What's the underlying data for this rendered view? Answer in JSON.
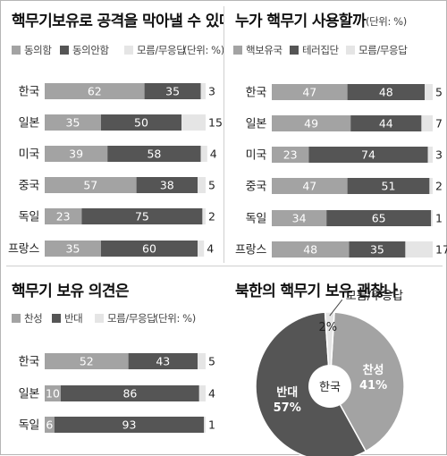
{
  "colors": {
    "light": "#a3a3a3",
    "dark": "#555555",
    "pale": "#e5e5e5",
    "pie_center": "#ffffff"
  },
  "chart_data": [
    {
      "type": "bar",
      "stacked": true,
      "orientation": "horizontal",
      "title": "핵무기보유로 공격을 막아낼 수 있다",
      "unit": "(단위: %)",
      "categories": [
        "한국",
        "일본",
        "미국",
        "중국",
        "독일",
        "프랑스"
      ],
      "series": [
        {
          "name": "동의함",
          "color": "light",
          "values": [
            62,
            35,
            39,
            57,
            23,
            35
          ]
        },
        {
          "name": "동의안함",
          "color": "dark",
          "values": [
            35,
            50,
            58,
            38,
            75,
            60
          ]
        },
        {
          "name": "모름/무응답",
          "color": "pale",
          "values": [
            3,
            15,
            4,
            5,
            2,
            4
          ]
        }
      ]
    },
    {
      "type": "bar",
      "stacked": true,
      "orientation": "horizontal",
      "title": "누가 핵무기 사용할까",
      "unit": "(단위: %)",
      "categories": [
        "한국",
        "일본",
        "미국",
        "중국",
        "독일",
        "프랑스"
      ],
      "series": [
        {
          "name": "핵보유국",
          "color": "light",
          "values": [
            47,
            49,
            23,
            47,
            34,
            48
          ]
        },
        {
          "name": "테러집단",
          "color": "dark",
          "values": [
            48,
            44,
            74,
            51,
            65,
            35
          ]
        },
        {
          "name": "모름/무응답",
          "color": "pale",
          "values": [
            5,
            7,
            3,
            2,
            1,
            17
          ]
        }
      ]
    },
    {
      "type": "bar",
      "stacked": true,
      "orientation": "horizontal",
      "title": "핵무기 보유 의견은",
      "unit": "(단위: %)",
      "categories": [
        "한국",
        "일본",
        "독일"
      ],
      "series": [
        {
          "name": "찬성",
          "color": "light",
          "values": [
            52,
            10,
            6
          ]
        },
        {
          "name": "반대",
          "color": "dark",
          "values": [
            43,
            86,
            93
          ]
        },
        {
          "name": "모름/무응답",
          "color": "pale",
          "values": [
            5,
            4,
            1
          ]
        }
      ]
    },
    {
      "type": "pie",
      "title": "북한의 핵무기 보유 괜찮나",
      "center_label": "한국",
      "slices": [
        {
          "name": "찬성",
          "value": 41,
          "color": "light"
        },
        {
          "name": "반대",
          "value": 57,
          "color": "dark"
        },
        {
          "name": "모름/무응답",
          "value": 2,
          "color": "pale"
        }
      ]
    }
  ]
}
